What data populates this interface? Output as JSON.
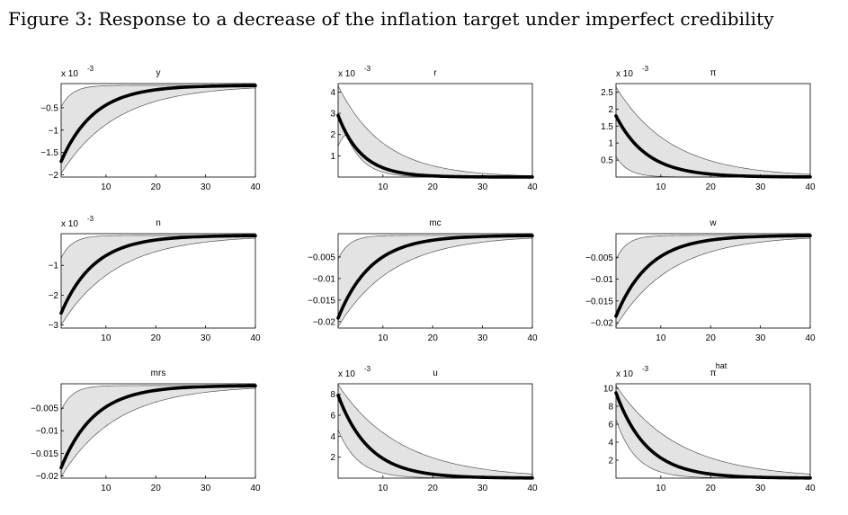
{
  "figure": {
    "title": "Figure 3: Response to a decrease of the inflation target under imperfect credibility"
  },
  "chart_data": [
    {
      "type": "area",
      "title": "y",
      "exponent": "x 10",
      "exponent_power": "-3",
      "x": [
        1,
        40
      ],
      "xticks": [
        10,
        20,
        30,
        40
      ],
      "yticks": [
        -2,
        -1.5,
        -1,
        -0.5
      ],
      "ytick_labels": [
        "−2",
        "−1.5",
        "−1",
        "−0.5"
      ],
      "ylim": [
        -2.05,
        0.04
      ],
      "start_mid": -1.7,
      "start_lo": -1.97,
      "start_hi": -0.48,
      "decay_mid": 0.15,
      "decay_lo": 0.09,
      "decay_hi": 0.45
    },
    {
      "type": "area",
      "title": "r",
      "exponent": "x 10",
      "exponent_power": "-3",
      "x": [
        1,
        40
      ],
      "xticks": [
        10,
        20,
        30,
        40
      ],
      "yticks": [
        1,
        2,
        3,
        4
      ],
      "ytick_labels": [
        "1",
        "2",
        "3",
        "4"
      ],
      "ylim": [
        0,
        4.4
      ],
      "start_mid": 2.9,
      "start_lo": 1.45,
      "start_hi": 4.3,
      "decay_mid": 0.21,
      "decay_lo": 0.3,
      "decay_hi": 0.11,
      "lo_hump": true
    },
    {
      "type": "area",
      "title": "π",
      "exponent": "x 10",
      "exponent_power": "-3",
      "x": [
        1,
        40
      ],
      "xticks": [
        10,
        20,
        30,
        40
      ],
      "yticks": [
        0.5,
        1,
        1.5,
        2,
        2.5
      ],
      "ytick_labels": [
        "0.5",
        "1",
        "1.5",
        "2",
        "2.5"
      ],
      "ylim": [
        0,
        2.75
      ],
      "start_mid": 1.8,
      "start_lo": 0.6,
      "start_hi": 2.65,
      "decay_mid": 0.16,
      "decay_lo": 0.4,
      "decay_hi": 0.09
    },
    {
      "type": "area",
      "title": "n",
      "exponent": "x 10",
      "exponent_power": "-3",
      "x": [
        1,
        40
      ],
      "xticks": [
        10,
        20,
        30,
        40
      ],
      "yticks": [
        -3,
        -2,
        -1
      ],
      "ytick_labels": [
        "−3",
        "−2",
        "−1"
      ],
      "ylim": [
        -3.1,
        0.06
      ],
      "start_mid": -2.6,
      "start_lo": -3.0,
      "start_hi": -0.75,
      "decay_mid": 0.15,
      "decay_lo": 0.09,
      "decay_hi": 0.45
    },
    {
      "type": "area",
      "title": "mc",
      "exponent": "",
      "exponent_power": "",
      "x": [
        1,
        40
      ],
      "xticks": [
        10,
        20,
        30,
        40
      ],
      "yticks": [
        -0.02,
        -0.015,
        -0.01,
        -0.005
      ],
      "ytick_labels": [
        "−0.02",
        "−0.015",
        "−0.01",
        "−0.005"
      ],
      "ylim": [
        -0.0215,
        0.0004
      ],
      "start_mid": -0.0192,
      "start_lo": -0.0212,
      "start_hi": -0.0055,
      "decay_mid": 0.15,
      "decay_lo": 0.09,
      "decay_hi": 0.45
    },
    {
      "type": "area",
      "title": "w",
      "exponent": "",
      "exponent_power": "",
      "x": [
        1,
        40
      ],
      "xticks": [
        10,
        20,
        30,
        40
      ],
      "yticks": [
        -0.02,
        -0.015,
        -0.01,
        -0.005
      ],
      "ytick_labels": [
        "−0.02",
        "−0.015",
        "−0.01",
        "−0.005"
      ],
      "ylim": [
        -0.0212,
        0.0004
      ],
      "start_mid": -0.0185,
      "start_lo": -0.0208,
      "start_hi": -0.0055,
      "decay_mid": 0.15,
      "decay_lo": 0.09,
      "decay_hi": 0.45
    },
    {
      "type": "area",
      "title": "mrs",
      "exponent": "",
      "exponent_power": "",
      "x": [
        1,
        40
      ],
      "xticks": [
        10,
        20,
        30,
        40
      ],
      "yticks": [
        -0.02,
        -0.015,
        -0.01,
        -0.005
      ],
      "ytick_labels": [
        "−0.02",
        "−0.015",
        "−0.01",
        "−0.005"
      ],
      "ylim": [
        -0.0205,
        0.0004
      ],
      "start_mid": -0.0182,
      "start_lo": -0.0202,
      "start_hi": -0.0055,
      "decay_mid": 0.15,
      "decay_lo": 0.09,
      "decay_hi": 0.45
    },
    {
      "type": "area",
      "title": "u",
      "exponent": "x 10",
      "exponent_power": "-3",
      "x": [
        1,
        40
      ],
      "xticks": [
        10,
        20,
        30,
        40
      ],
      "yticks": [
        2,
        4,
        6,
        8
      ],
      "ytick_labels": [
        "2",
        "4",
        "6",
        "8"
      ],
      "ylim": [
        0,
        9.0
      ],
      "start_mid": 7.9,
      "start_lo": 4.6,
      "start_hi": 8.9,
      "decay_mid": 0.16,
      "decay_lo": 0.25,
      "decay_hi": 0.08
    },
    {
      "type": "area",
      "title": "π",
      "title_sup": "hat",
      "exponent": "x 10",
      "exponent_power": "-3",
      "x": [
        1,
        40
      ],
      "xticks": [
        10,
        20,
        30,
        40
      ],
      "yticks": [
        2,
        4,
        6,
        8,
        10
      ],
      "ytick_labels": [
        "2",
        "4",
        "6",
        "8",
        "10"
      ],
      "ylim": [
        0,
        10.5
      ],
      "start_mid": 9.5,
      "start_lo": 6.5,
      "start_hi": 10.3,
      "decay_mid": 0.16,
      "decay_lo": 0.25,
      "decay_hi": 0.08
    }
  ]
}
